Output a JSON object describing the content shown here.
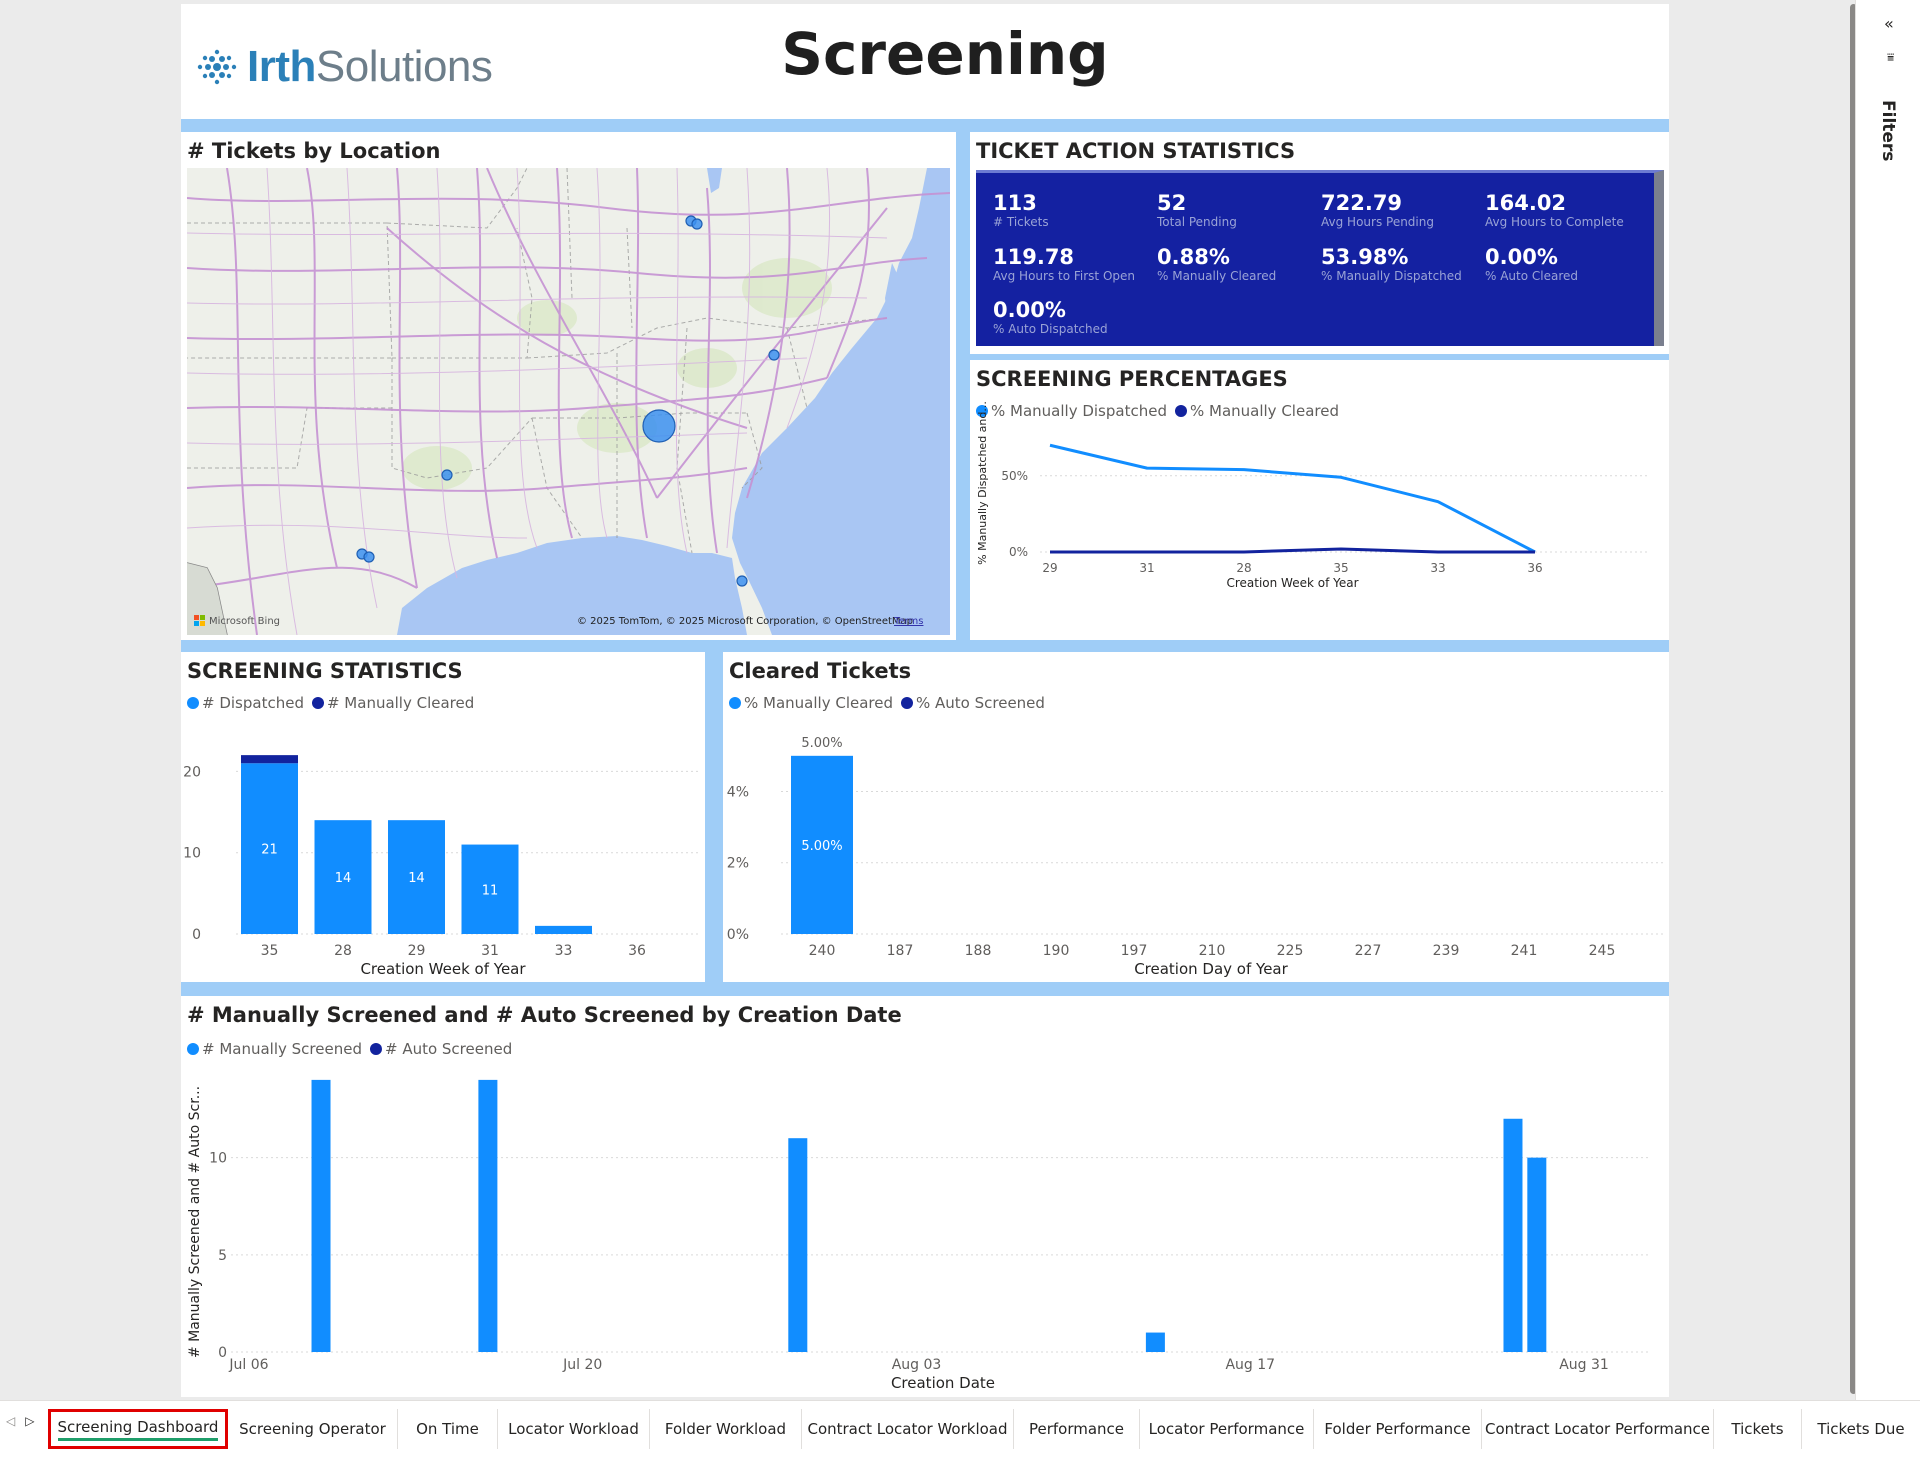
{
  "report": {
    "logo_bold": "Irth",
    "logo_light": "Solutions",
    "title": "Screening"
  },
  "map": {
    "title": "# Tickets by Location",
    "attribution": "© 2025 TomTom, © 2025 Microsoft Corporation, © OpenStreetMap",
    "terms": "Terms",
    "bing": "Microsoft Bing",
    "colors": {
      "water": "#a9c6f3",
      "land": "#eef0ea",
      "road": "#c592d3",
      "bubble": "#3c90f0"
    }
  },
  "ticket_action_statistics": {
    "title": "TICKET ACTION STATISTICS",
    "kpis": [
      {
        "value": "113",
        "label": "# Tickets"
      },
      {
        "value": "52",
        "label": "Total Pending"
      },
      {
        "value": "722.79",
        "label": "Avg Hours Pending"
      },
      {
        "value": "164.02",
        "label": "Avg Hours to Complete"
      },
      {
        "value": "119.78",
        "label": "Avg Hours to First Open"
      },
      {
        "value": "0.88%",
        "label": "% Manually Cleared"
      },
      {
        "value": "53.98%",
        "label": "% Manually Dispatched"
      },
      {
        "value": "0.00%",
        "label": "% Auto Cleared"
      },
      {
        "value": "0.00%",
        "label": "% Auto Dispatched"
      }
    ],
    "card_color": "#1421a1"
  },
  "screening_percentages": {
    "title": "SCREENING PERCENTAGES",
    "legend": [
      "% Manually Dispatched",
      "% Manually Cleared"
    ],
    "colors": [
      "#118dff",
      "#12239e"
    ]
  },
  "screening_statistics": {
    "title": "SCREENING STATISTICS",
    "legend": [
      "# Dispatched",
      "# Manually Cleared"
    ],
    "colors": [
      "#118dff",
      "#12239e"
    ]
  },
  "cleared_tickets": {
    "title": "Cleared Tickets",
    "legend": [
      "% Manually Cleared",
      "% Auto Screened"
    ],
    "colors": [
      "#118dff",
      "#12239e"
    ]
  },
  "screened_by_date": {
    "title": "# Manually Screened and # Auto Screened by Creation Date",
    "legend": [
      "# Manually Screened",
      "# Auto Screened"
    ],
    "colors": [
      "#118dff",
      "#12239e"
    ]
  },
  "chart_data": [
    {
      "id": "screening_percentages",
      "type": "line",
      "title": "SCREENING PERCENTAGES",
      "xlabel": "Creation Week of Year",
      "ylabel": "% Manually Dispatched and...",
      "categories": [
        "29",
        "31",
        "28",
        "35",
        "33",
        "36"
      ],
      "series": [
        {
          "name": "% Manually Dispatched",
          "values": [
            70,
            55,
            54,
            49,
            33,
            0
          ]
        },
        {
          "name": "% Manually Cleared",
          "values": [
            0,
            0,
            0,
            2,
            0,
            0
          ]
        }
      ],
      "yticks": [
        "0%",
        "50%"
      ],
      "ylim": [
        0,
        80
      ],
      "grid": true,
      "legend": "top-left"
    },
    {
      "id": "screening_statistics",
      "type": "bar",
      "stacked": true,
      "title": "SCREENING STATISTICS",
      "xlabel": "Creation Week of Year",
      "ylabel": "",
      "categories": [
        "35",
        "28",
        "29",
        "31",
        "33",
        "36"
      ],
      "series": [
        {
          "name": "# Dispatched",
          "values": [
            21,
            14,
            14,
            11,
            1,
            0
          ]
        },
        {
          "name": "# Manually Cleared",
          "values": [
            1,
            0,
            0,
            0,
            0,
            0
          ]
        }
      ],
      "data_labels": [
        "21",
        "14",
        "14",
        "11",
        "",
        ""
      ],
      "yticks": [
        "0",
        "10",
        "20"
      ],
      "ylim": [
        0,
        23
      ],
      "grid": true,
      "legend": "top-left"
    },
    {
      "id": "cleared_tickets",
      "type": "bar",
      "title": "Cleared Tickets",
      "xlabel": "Creation Day of Year",
      "ylabel": "",
      "categories": [
        "240",
        "187",
        "188",
        "190",
        "197",
        "210",
        "225",
        "227",
        "239",
        "241",
        "245"
      ],
      "series": [
        {
          "name": "% Manually Cleared",
          "values": [
            5.0,
            0,
            0,
            0,
            0,
            0,
            0,
            0,
            0,
            0,
            0
          ]
        },
        {
          "name": "% Auto Screened",
          "values": [
            0,
            0,
            0,
            0,
            0,
            0,
            0,
            0,
            0,
            0,
            0
          ]
        }
      ],
      "data_labels": [
        "5.00%",
        "5.00%"
      ],
      "yticks": [
        "0%",
        "2%",
        "4%"
      ],
      "ylim": [
        0,
        5.5
      ],
      "grid": true,
      "legend": "top-left"
    },
    {
      "id": "screened_by_date",
      "type": "bar",
      "title": "# Manually Screened and # Auto Screened by Creation Date",
      "xlabel": "Creation Date",
      "ylabel": "# Manually Screened and # Auto Scr...",
      "x_ticks": [
        "Jul 06",
        "Jul 20",
        "Aug 03",
        "Aug 17",
        "Aug 31"
      ],
      "x": [
        "2025-07-09",
        "2025-07-16",
        "2025-07-29",
        "2025-08-13",
        "2025-08-28",
        "2025-08-29"
      ],
      "series": [
        {
          "name": "# Manually Screened",
          "values": [
            14,
            14,
            11,
            1,
            12,
            10
          ]
        },
        {
          "name": "# Auto Screened",
          "values": [
            0,
            0,
            0,
            0,
            0,
            0
          ]
        }
      ],
      "yticks": [
        "0",
        "5",
        "10"
      ],
      "ylim": [
        0,
        14.2
      ],
      "grid": true,
      "legend": "top-left"
    }
  ],
  "filters": {
    "label": "Filters",
    "collapse_icon": "double-chevron-left-icon"
  },
  "tabs": [
    {
      "label": "Screening Dashboard",
      "active": true
    },
    {
      "label": "Screening Operator"
    },
    {
      "label": "On Time"
    },
    {
      "label": "Locator Workload"
    },
    {
      "label": "Folder Workload"
    },
    {
      "label": "Contract Locator Workload"
    },
    {
      "label": "Performance"
    },
    {
      "label": "Locator Performance"
    },
    {
      "label": "Folder Performance"
    },
    {
      "label": "Contract Locator Performance"
    },
    {
      "label": "Tickets"
    },
    {
      "label": "Tickets Due"
    }
  ]
}
